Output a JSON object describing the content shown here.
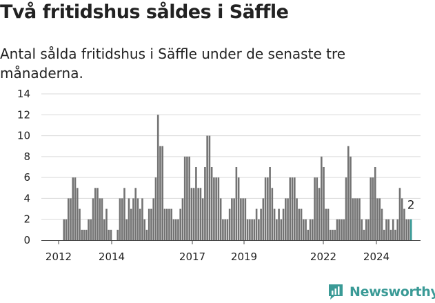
{
  "title": "Två fritidshus såldes i Säffle",
  "subtitle": "Antal sålda fritidshus i Säffle under de senaste tre månaderna.",
  "brand": {
    "name": "Newsworthy",
    "color": "#3a9a96",
    "icon": "newsworthy-logo-icon"
  },
  "colors": {
    "bar": "#737373",
    "highlight": "#3a9a96",
    "grid": "#d9d9d9"
  },
  "chart_data": {
    "type": "bar",
    "title": "Två fritidshus såldes i Säffle",
    "subtitle": "Antal sålda fritidshus i Säffle under de senaste tre månaderna.",
    "x_tick_labels": [
      "2012",
      "2014",
      "2017",
      "2019",
      "2022",
      "2024"
    ],
    "y_ticks": [
      0,
      2,
      4,
      6,
      8,
      10,
      12,
      14
    ],
    "ylim": [
      0,
      14
    ],
    "grid": true,
    "values": [
      0,
      0,
      0,
      0,
      0,
      0,
      0,
      0,
      0,
      0,
      2,
      2,
      4,
      4,
      6,
      6,
      5,
      3,
      1,
      1,
      1,
      2,
      2,
      4,
      5,
      5,
      4,
      4,
      2,
      3,
      1,
      1,
      0,
      0,
      1,
      4,
      4,
      5,
      2,
      4,
      3,
      4,
      5,
      4,
      3,
      4,
      2,
      1,
      3,
      3,
      4,
      6,
      12,
      9,
      9,
      3,
      3,
      3,
      3,
      2,
      2,
      2,
      3,
      4,
      8,
      8,
      8,
      5,
      5,
      7,
      5,
      5,
      4,
      7,
      10,
      10,
      7,
      6,
      6,
      6,
      4,
      2,
      2,
      2,
      3,
      4,
      4,
      7,
      6,
      4,
      4,
      4,
      2,
      2,
      2,
      2,
      3,
      2,
      3,
      4,
      6,
      6,
      7,
      5,
      3,
      2,
      3,
      2,
      3,
      4,
      4,
      6,
      6,
      6,
      4,
      3,
      3,
      2,
      2,
      1,
      2,
      2,
      6,
      6,
      5,
      8,
      7,
      3,
      3,
      1,
      1,
      1,
      2,
      2,
      2,
      2,
      6,
      9,
      8,
      4,
      4,
      4,
      4,
      2,
      1,
      2,
      2,
      6,
      6,
      7,
      4,
      4,
      3,
      1,
      2,
      2,
      1,
      2,
      1,
      2,
      5,
      4,
      3,
      2,
      2,
      2
    ],
    "highlight_value": 2,
    "highlight_label": "2"
  }
}
